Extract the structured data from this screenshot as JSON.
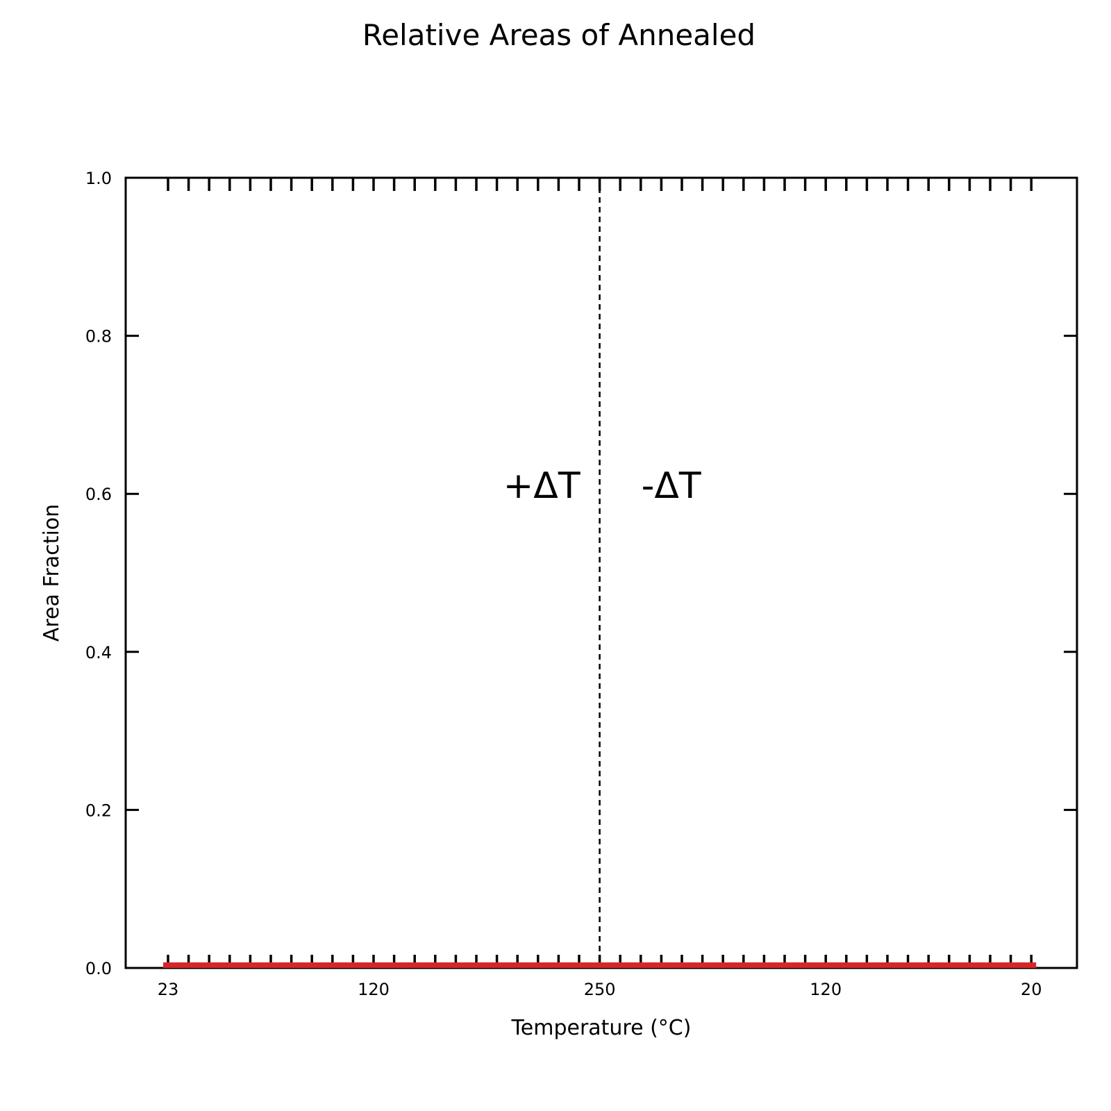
{
  "chart_data": {
    "type": "line",
    "title": "Relative Areas of Annealed",
    "xlabel": "Temperature ($^\\circ$C)",
    "xlabel_display": "Temperature (°C)",
    "ylabel": "Area Fraction",
    "ylim": [
      0,
      1.0
    ],
    "yticks": [
      "0.0",
      "0.2",
      "0.4",
      "0.6",
      "0.8",
      "1.0"
    ],
    "xticks": [
      {
        "step": 0,
        "label": "23"
      },
      {
        "step": 10,
        "label": "120"
      },
      {
        "step": 21,
        "label": "250"
      },
      {
        "step": 32,
        "label": "120"
      },
      {
        "step": 42,
        "label": "20"
      }
    ],
    "minor_tick_steps": 43,
    "divider_step": 21,
    "annotations": [
      {
        "text": "+ΔT",
        "side": "left of divider"
      },
      {
        "text": "-ΔT",
        "side": "right of divider"
      }
    ],
    "series": [
      {
        "color": "#d62728",
        "y_value": 0.0
      }
    ],
    "colors": {
      "series": "#d62728",
      "axes": "#000000",
      "background": "#ffffff"
    },
    "grid": false
  }
}
